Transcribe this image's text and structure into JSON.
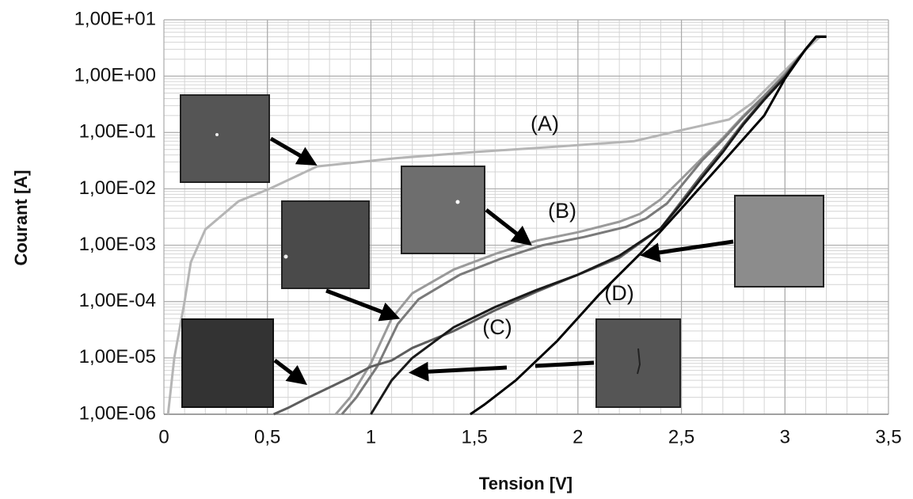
{
  "chart_data": {
    "type": "line",
    "x_label": "Tension [V]",
    "y_label": "Courant [A]",
    "log_y": true,
    "grid": true,
    "minor_grid": true,
    "xlim": [
      0,
      3.5
    ],
    "ylim": [
      1e-06,
      10
    ],
    "xticks": [
      0,
      {
        "value": 0.5,
        "label": "0,5"
      },
      1,
      {
        "value": 1.5,
        "label": "1,5"
      },
      2,
      {
        "value": 2.5,
        "label": "2,5"
      },
      3,
      {
        "value": 3.5,
        "label": "3,5"
      }
    ],
    "yticks": [
      {
        "value": 1e-06,
        "label": "1,00E-06"
      },
      {
        "value": 1e-05,
        "label": "1,00E-05"
      },
      {
        "value": 0.0001,
        "label": "1,00E-04"
      },
      {
        "value": 0.001,
        "label": "1,00E-03"
      },
      {
        "value": 0.01,
        "label": "1,00E-02"
      },
      {
        "value": 0.1,
        "label": "1,00E-01"
      },
      {
        "value": 1,
        "label": "1,00E+00"
      },
      {
        "value": 10,
        "label": "1,00E+01"
      }
    ],
    "annotations": [
      "(A)",
      "(B)",
      "(C)",
      "(D)"
    ],
    "series": [
      {
        "color": "#b5b5b5",
        "x": [
          0.02,
          0.05,
          0.1,
          0.13,
          0.2,
          0.36,
          0.51,
          0.74,
          1.12,
          1.5,
          1.89,
          2.27,
          2.5,
          2.73,
          2.84,
          2.96,
          3.11,
          3.17,
          3.2
        ],
        "values": [
          1e-06,
          1e-05,
          0.0001,
          0.0005,
          0.0019,
          0.006,
          0.01,
          0.025,
          0.035,
          0.045,
          0.056,
          0.07,
          0.11,
          0.17,
          0.33,
          0.9,
          3.2,
          5,
          5
        ]
      },
      {
        "color": "#9a9a9a",
        "x": [
          0.83,
          0.9,
          1.0,
          1.1,
          1.2,
          1.4,
          1.6,
          1.8,
          2.0,
          2.2,
          2.3,
          2.4,
          2.5,
          2.6,
          2.7,
          2.8,
          2.9,
          3.0,
          3.1,
          3.15,
          3.2
        ],
        "values": [
          1e-06,
          2e-06,
          8e-06,
          5e-05,
          0.00014,
          0.00037,
          0.0007,
          0.0012,
          0.0017,
          0.0026,
          0.0036,
          0.0065,
          0.015,
          0.035,
          0.08,
          0.2,
          0.45,
          1.1,
          3,
          5,
          5
        ]
      },
      {
        "color": "#7a7a7a",
        "x": [
          0.86,
          0.93,
          1.03,
          1.13,
          1.23,
          1.43,
          1.63,
          1.83,
          2.03,
          2.23,
          2.33,
          2.43,
          2.52,
          2.6,
          2.7,
          2.8,
          2.9,
          3.0,
          3.1,
          3.15,
          3.2
        ],
        "values": [
          1e-06,
          2e-06,
          7e-06,
          4e-05,
          0.00011,
          0.0003,
          0.00058,
          0.001,
          0.0014,
          0.0021,
          0.003,
          0.0055,
          0.014,
          0.032,
          0.075,
          0.19,
          0.44,
          1.05,
          3,
          5,
          5
        ]
      },
      {
        "color": "#5e5e5e",
        "x": [
          0.53,
          0.6,
          0.7,
          0.8,
          0.9,
          1.0,
          1.1,
          1.2,
          1.4,
          1.6,
          1.8,
          2.0,
          2.2,
          2.4,
          2.5,
          2.6,
          2.7,
          2.8,
          2.9,
          3.0,
          3.1,
          3.15,
          3.2
        ],
        "values": [
          1e-06,
          1.3e-06,
          2e-06,
          3e-06,
          4.5e-06,
          7e-06,
          9e-06,
          1.5e-05,
          3e-05,
          7e-05,
          0.00015,
          0.0003,
          0.0006,
          0.002,
          0.006,
          0.018,
          0.05,
          0.15,
          0.4,
          1,
          3,
          5,
          5
        ]
      },
      {
        "color": "#1a1a1a",
        "x": [
          1.0,
          1.05,
          1.1,
          1.2,
          1.4,
          1.6,
          1.8,
          2.0,
          2.2,
          2.4,
          2.5,
          2.6,
          2.7,
          2.8,
          2.9,
          3.0,
          3.1,
          3.15,
          3.2
        ],
        "values": [
          1e-06,
          2e-06,
          4e-06,
          1e-05,
          3.5e-05,
          8e-05,
          0.00016,
          0.0003,
          0.00065,
          0.002,
          0.0055,
          0.016,
          0.045,
          0.14,
          0.38,
          0.95,
          3,
          5,
          5
        ]
      },
      {
        "color": "#000000",
        "x": [
          1.48,
          1.55,
          1.7,
          1.9,
          2.1,
          2.3,
          2.5,
          2.7,
          2.9,
          3.0,
          3.1,
          3.15,
          3.2
        ],
        "values": [
          1e-06,
          1.5e-06,
          4e-06,
          2e-05,
          0.00013,
          0.0007,
          0.0045,
          0.03,
          0.2,
          0.9,
          3,
          5,
          5
        ]
      }
    ]
  }
}
